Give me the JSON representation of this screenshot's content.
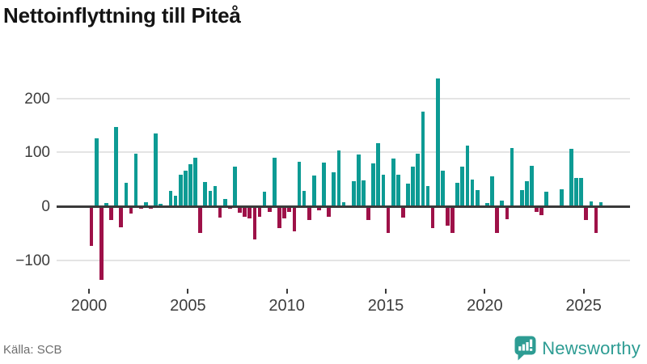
{
  "title": "Nettoinflyttning till Piteå",
  "source": "Källa: SCB",
  "brand": {
    "name": "Newsworthy",
    "color": "#2d9c93",
    "icon": "bar-chart-speech-bubble"
  },
  "chart_data": {
    "type": "bar",
    "title": "Nettoinflyttning till Piteå",
    "xlabel": "",
    "ylabel": "",
    "frequency": "quarterly",
    "period_start": "2000 Q1",
    "period_end": "2025 Q4",
    "x_tick_labels": [
      "2000",
      "2005",
      "2010",
      "2015",
      "2020",
      "2025"
    ],
    "quarters_per_x_tick": 20,
    "y_ticks": [
      200,
      100,
      0,
      -100
    ],
    "y_tick_labels": [
      "200",
      "100",
      "0",
      "−100"
    ],
    "ylim": [
      -150,
      250
    ],
    "grid": "horizontal",
    "legend": "none",
    "colors": {
      "positive": "#0d9b94",
      "negative": "#9e1148",
      "axis": "#3a3a3a",
      "grid": "#e4e4e4"
    },
    "values": [
      -73,
      126,
      -137,
      6,
      -26,
      147,
      -39,
      43,
      -14,
      97,
      -5,
      7,
      -4,
      135,
      5,
      0,
      29,
      20,
      59,
      66,
      78,
      90,
      -50,
      45,
      28,
      38,
      -21,
      13,
      -5,
      74,
      -12,
      -19,
      -22,
      -62,
      -20,
      27,
      -10,
      90,
      -41,
      -22,
      -10,
      -47,
      82,
      28,
      -25,
      57,
      -8,
      81,
      -20,
      63,
      103,
      7,
      -3,
      47,
      96,
      48,
      -25,
      80,
      117,
      58,
      -50,
      89,
      59,
      -21,
      42,
      73,
      97,
      176,
      37,
      -41,
      237,
      66,
      -36,
      -49,
      43,
      74,
      112,
      50,
      30,
      0,
      6,
      56,
      -49,
      10,
      -24,
      108,
      0,
      30,
      46,
      75,
      -10,
      -16,
      27,
      0,
      -3,
      31,
      0,
      106,
      53,
      52,
      -26,
      9,
      -50,
      7
    ]
  }
}
